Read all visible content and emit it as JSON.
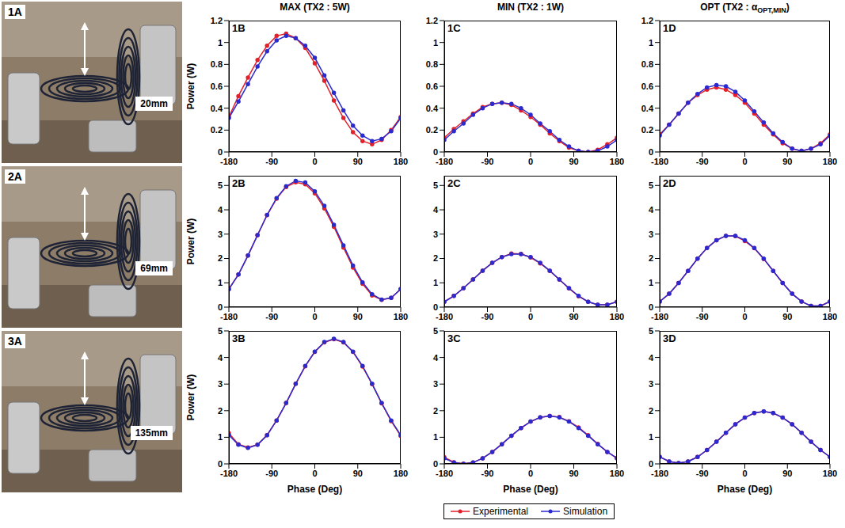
{
  "photos": [
    {
      "label": "1A",
      "distance": "20mm"
    },
    {
      "label": "2A",
      "distance": "69mm"
    },
    {
      "label": "3A",
      "distance": "135mm"
    }
  ],
  "column_titles": [
    {
      "text": "MAX (TX2 : 5W)"
    },
    {
      "text": "MIN (TX2 : 1W)"
    },
    {
      "text": "OPT (TX2 : α",
      "subscript": "OPT,MIN",
      "suffix": ")"
    }
  ],
  "legend": "bottom",
  "chart_data": [
    {
      "label": "1B",
      "type": "line",
      "ylabel": "Power (W)",
      "x": [
        -180,
        -160,
        -140,
        -120,
        -100,
        -80,
        -60,
        -40,
        -20,
        0,
        20,
        40,
        60,
        80,
        100,
        120,
        140,
        160,
        180
      ],
      "xlim": [
        -180,
        180
      ],
      "xticks": [
        -180,
        -90,
        0,
        90,
        180
      ],
      "ylim": [
        0,
        1.2
      ],
      "yticks": [
        0,
        0.2,
        0.4,
        0.6,
        0.8,
        1,
        1.2
      ],
      "series": [
        {
          "name": "Experimental",
          "color": "#e3202a",
          "marker": "circle",
          "values": [
            0.32,
            0.51,
            0.68,
            0.84,
            0.97,
            1.06,
            1.08,
            1.04,
            0.95,
            0.81,
            0.65,
            0.47,
            0.31,
            0.18,
            0.1,
            0.07,
            0.11,
            0.2,
            0.32
          ]
        },
        {
          "name": "Simulation",
          "color": "#2a2ad0",
          "marker": "circle",
          "values": [
            0.31,
            0.46,
            0.62,
            0.78,
            0.92,
            1.02,
            1.06,
            1.04,
            0.97,
            0.86,
            0.7,
            0.54,
            0.38,
            0.24,
            0.15,
            0.1,
            0.12,
            0.19,
            0.31
          ]
        }
      ]
    },
    {
      "label": "1C",
      "type": "line",
      "x": [
        -180,
        -160,
        -140,
        -120,
        -100,
        -80,
        -60,
        -40,
        -20,
        0,
        20,
        40,
        60,
        80,
        100,
        120,
        140,
        160,
        180
      ],
      "xlim": [
        -180,
        180
      ],
      "xticks": [
        -180,
        -90,
        0,
        90,
        180
      ],
      "ylim": [
        0,
        1.2
      ],
      "yticks": [
        0,
        0.2,
        0.4,
        0.6,
        0.8,
        1,
        1.2
      ],
      "series": [
        {
          "name": "Experimental",
          "color": "#e3202a",
          "marker": "circle",
          "values": [
            0.13,
            0.21,
            0.28,
            0.35,
            0.41,
            0.44,
            0.45,
            0.43,
            0.38,
            0.32,
            0.25,
            0.17,
            0.1,
            0.04,
            0.01,
            0,
            0.02,
            0.07,
            0.13
          ]
        },
        {
          "name": "Simulation",
          "color": "#2a2ad0",
          "marker": "circle",
          "values": [
            0.11,
            0.19,
            0.26,
            0.34,
            0.4,
            0.44,
            0.45,
            0.44,
            0.4,
            0.34,
            0.26,
            0.19,
            0.11,
            0.05,
            0.01,
            0,
            0.01,
            0.05,
            0.11
          ]
        }
      ]
    },
    {
      "label": "1D",
      "type": "line",
      "x": [
        -180,
        -160,
        -140,
        -120,
        -100,
        -80,
        -60,
        -40,
        -20,
        0,
        20,
        40,
        60,
        80,
        100,
        120,
        140,
        160,
        180
      ],
      "xlim": [
        -180,
        180
      ],
      "xticks": [
        -180,
        -90,
        0,
        90,
        180
      ],
      "ylim": [
        0,
        1.2
      ],
      "yticks": [
        0,
        0.2,
        0.4,
        0.6,
        0.8,
        1,
        1.2
      ],
      "series": [
        {
          "name": "Experimental",
          "color": "#e3202a",
          "marker": "circle",
          "values": [
            0.16,
            0.25,
            0.35,
            0.45,
            0.52,
            0.57,
            0.59,
            0.57,
            0.52,
            0.45,
            0.35,
            0.25,
            0.16,
            0.08,
            0.03,
            0.01,
            0.03,
            0.08,
            0.16
          ]
        },
        {
          "name": "Simulation",
          "color": "#2a2ad0",
          "marker": "circle",
          "values": [
            0.15,
            0.25,
            0.35,
            0.45,
            0.53,
            0.59,
            0.61,
            0.6,
            0.55,
            0.47,
            0.37,
            0.27,
            0.17,
            0.09,
            0.03,
            0.01,
            0.03,
            0.07,
            0.15
          ]
        }
      ]
    },
    {
      "label": "2B",
      "type": "line",
      "ylabel": "Power (W)",
      "x": [
        -180,
        -160,
        -140,
        -120,
        -100,
        -80,
        -60,
        -40,
        -20,
        0,
        20,
        40,
        60,
        80,
        100,
        120,
        140,
        160,
        180
      ],
      "xlim": [
        -180,
        180
      ],
      "xticks": [
        -180,
        -90,
        0,
        90,
        180
      ],
      "ylim": [
        0,
        5.4
      ],
      "yticks": [
        0,
        1,
        2,
        3,
        4,
        5
      ],
      "series": [
        {
          "name": "Experimental",
          "color": "#e3202a",
          "marker": "circle",
          "values": [
            0.75,
            1.34,
            2.12,
            2.96,
            3.78,
            4.46,
            4.94,
            5.13,
            5.05,
            4.68,
            4.06,
            3.3,
            2.45,
            1.63,
            0.96,
            0.48,
            0.3,
            0.38,
            0.75
          ]
        },
        {
          "name": "Simulation",
          "color": "#2a2ad0",
          "marker": "circle",
          "values": [
            0.74,
            1.34,
            2.12,
            2.96,
            3.79,
            4.48,
            4.97,
            5.19,
            5.12,
            4.76,
            4.16,
            3.38,
            2.54,
            1.71,
            1.02,
            0.53,
            0.31,
            0.38,
            0.74
          ]
        }
      ]
    },
    {
      "label": "2C",
      "type": "line",
      "x": [
        -180,
        -160,
        -140,
        -120,
        -100,
        -80,
        -60,
        -40,
        -20,
        0,
        20,
        40,
        60,
        80,
        100,
        120,
        140,
        160,
        180
      ],
      "xlim": [
        -180,
        180
      ],
      "xticks": [
        -180,
        -90,
        0,
        90,
        180
      ],
      "ylim": [
        0,
        5.4
      ],
      "yticks": [
        0,
        1,
        2,
        3,
        4,
        5
      ],
      "series": [
        {
          "name": "Experimental",
          "color": "#e3202a",
          "marker": "circle",
          "values": [
            0.22,
            0.46,
            0.78,
            1.14,
            1.5,
            1.82,
            2.06,
            2.2,
            2.19,
            2.04,
            1.8,
            1.49,
            1.13,
            0.77,
            0.45,
            0.22,
            0.1,
            0.1,
            0.22
          ]
        },
        {
          "name": "Simulation",
          "color": "#2a2ad0",
          "marker": "circle",
          "values": [
            0.22,
            0.46,
            0.78,
            1.14,
            1.5,
            1.82,
            2.06,
            2.18,
            2.18,
            2.06,
            1.82,
            1.5,
            1.14,
            0.78,
            0.46,
            0.22,
            0.1,
            0.1,
            0.22
          ]
        }
      ]
    },
    {
      "label": "2D",
      "type": "line",
      "x": [
        -180,
        -160,
        -140,
        -120,
        -100,
        -80,
        -60,
        -40,
        -20,
        0,
        20,
        40,
        60,
        80,
        100,
        120,
        140,
        160,
        180
      ],
      "xlim": [
        -180,
        180
      ],
      "xticks": [
        -180,
        -90,
        0,
        90,
        180
      ],
      "ylim": [
        0,
        5.4
      ],
      "yticks": [
        0,
        1,
        2,
        3,
        4,
        5
      ],
      "series": [
        {
          "name": "Experimental",
          "color": "#e3202a",
          "marker": "circle",
          "values": [
            0.23,
            0.55,
            0.99,
            1.49,
            1.99,
            2.43,
            2.75,
            2.93,
            2.92,
            2.72,
            2.42,
            1.98,
            1.49,
            0.99,
            0.55,
            0.23,
            0.05,
            0.05,
            0.23
          ]
        },
        {
          "name": "Simulation",
          "color": "#2a2ad0",
          "marker": "circle",
          "values": [
            0.23,
            0.55,
            0.99,
            1.49,
            1.99,
            2.43,
            2.75,
            2.93,
            2.93,
            2.75,
            2.43,
            1.99,
            1.49,
            0.99,
            0.55,
            0.23,
            0.05,
            0.05,
            0.23
          ]
        }
      ]
    },
    {
      "label": "3B",
      "type": "line",
      "ylabel": "Power (W)",
      "xlabel": "Phase (Deg)",
      "x": [
        -180,
        -160,
        -140,
        -120,
        -100,
        -80,
        -60,
        -40,
        -20,
        0,
        20,
        40,
        60,
        80,
        100,
        120,
        140,
        160,
        180
      ],
      "xlim": [
        -180,
        180
      ],
      "xticks": [
        -180,
        -90,
        0,
        90,
        180
      ],
      "ylim": [
        0,
        5
      ],
      "yticks": [
        0,
        1,
        2,
        3,
        4,
        5
      ],
      "series": [
        {
          "name": "Experimental",
          "color": "#e3202a",
          "marker": "circle",
          "values": [
            1.15,
            0.74,
            0.62,
            0.72,
            1.08,
            1.63,
            2.29,
            3.01,
            3.67,
            4.21,
            4.57,
            4.69,
            4.57,
            4.21,
            3.66,
            3.0,
            2.28,
            1.61,
            1.05
          ]
        },
        {
          "name": "Simulation",
          "color": "#2a2ad0",
          "marker": "circle",
          "values": [
            1.08,
            0.72,
            0.6,
            0.72,
            1.08,
            1.63,
            2.29,
            3.01,
            3.68,
            4.22,
            4.58,
            4.7,
            4.58,
            4.22,
            3.68,
            3.01,
            2.29,
            1.63,
            1.08
          ]
        }
      ]
    },
    {
      "label": "3C",
      "type": "line",
      "xlabel": "Phase (Deg)",
      "x": [
        -180,
        -160,
        -140,
        -120,
        -100,
        -80,
        -60,
        -40,
        -20,
        0,
        20,
        40,
        60,
        80,
        100,
        120,
        140,
        160,
        180
      ],
      "xlim": [
        -180,
        180
      ],
      "xticks": [
        -180,
        -90,
        0,
        90,
        180
      ],
      "ylim": [
        0,
        5
      ],
      "yticks": [
        0,
        1,
        2,
        3,
        4,
        5
      ],
      "series": [
        {
          "name": "Experimental",
          "color": "#e3202a",
          "marker": "circle",
          "values": [
            0.25,
            0.06,
            0.01,
            0.05,
            0.21,
            0.45,
            0.74,
            1.06,
            1.35,
            1.59,
            1.75,
            1.8,
            1.76,
            1.6,
            1.37,
            1.08,
            0.75,
            0.45,
            0.22
          ]
        },
        {
          "name": "Simulation",
          "color": "#2a2ad0",
          "marker": "circle",
          "values": [
            0.21,
            0.05,
            0,
            0.05,
            0.21,
            0.45,
            0.74,
            1.06,
            1.35,
            1.59,
            1.75,
            1.8,
            1.75,
            1.59,
            1.35,
            1.06,
            0.74,
            0.45,
            0.21
          ]
        }
      ]
    },
    {
      "label": "3D",
      "type": "line",
      "xlabel": "Phase (Deg)",
      "x": [
        -180,
        -160,
        -140,
        -120,
        -100,
        -80,
        -60,
        -40,
        -20,
        0,
        20,
        40,
        60,
        80,
        100,
        120,
        140,
        160,
        180
      ],
      "xlim": [
        -180,
        180
      ],
      "xticks": [
        -180,
        -90,
        0,
        90,
        180
      ],
      "ylim": [
        0,
        5
      ],
      "yticks": [
        0,
        1,
        2,
        3,
        4,
        5
      ],
      "series": [
        {
          "name": "Experimental",
          "color": "#e3202a",
          "marker": "circle",
          "values": [
            0.27,
            0.09,
            0.03,
            0.09,
            0.26,
            0.52,
            0.83,
            1.17,
            1.49,
            1.74,
            1.91,
            1.97,
            1.91,
            1.74,
            1.49,
            1.17,
            0.83,
            0.52,
            0.26
          ]
        },
        {
          "name": "Simulation",
          "color": "#2a2ad0",
          "marker": "circle",
          "values": [
            0.26,
            0.09,
            0.03,
            0.09,
            0.26,
            0.52,
            0.83,
            1.17,
            1.49,
            1.74,
            1.91,
            1.97,
            1.91,
            1.74,
            1.49,
            1.17,
            0.83,
            0.52,
            0.26
          ]
        }
      ]
    }
  ]
}
